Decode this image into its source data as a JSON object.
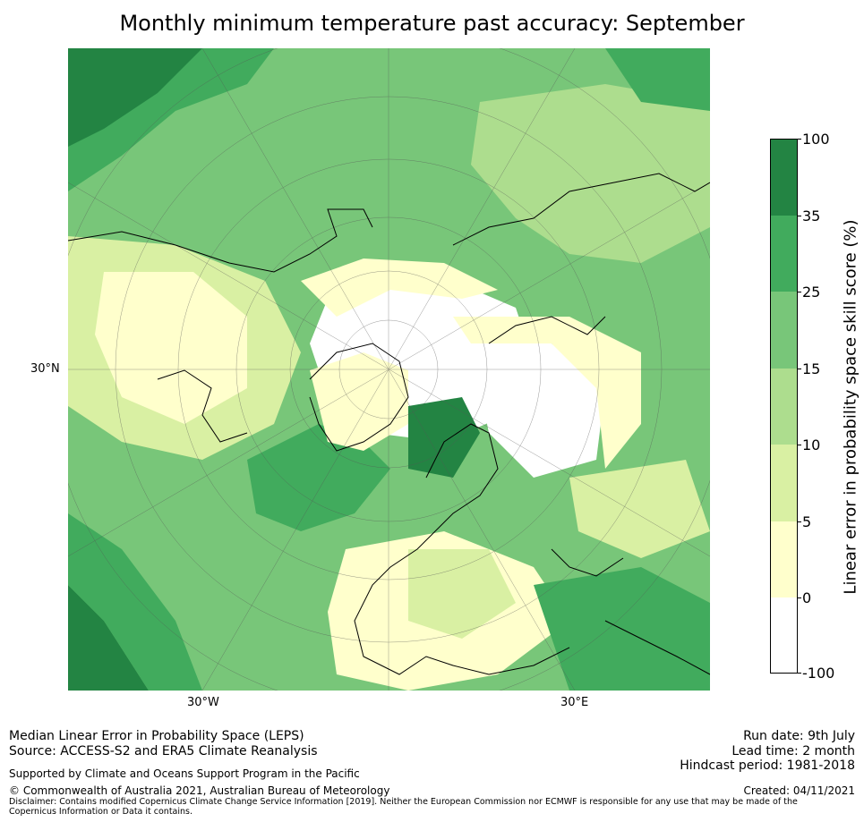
{
  "title": "Monthly minimum temperature past accuracy: September",
  "map": {
    "lat_labels": [
      "30°N"
    ],
    "lon_labels": [
      "30°W",
      "30°E"
    ],
    "colors": {
      "ocean_dark": "#238443",
      "mid_green": "#41ab5d",
      "green": "#78c679",
      "light_green": "#addd8e",
      "pale_green": "#d9f0a3",
      "pale_yellow": "#ffffcc",
      "white": "#ffffff"
    }
  },
  "colorbar": {
    "label": "Linear error in probability space skill score (%)",
    "ticks": [
      "100",
      "35",
      "25",
      "15",
      "10",
      "5",
      "0",
      "-100"
    ],
    "segments": [
      {
        "color": "#238443"
      },
      {
        "color": "#41ab5d"
      },
      {
        "color": "#78c679"
      },
      {
        "color": "#addd8e"
      },
      {
        "color": "#d9f0a3"
      },
      {
        "color": "#ffffcc"
      },
      {
        "color": "#ffffff"
      }
    ]
  },
  "footer": {
    "method": "Median Linear Error in Probability Space (LEPS)",
    "source": "Source: ACCESS-S2 and ERA5 Climate Reanalysis",
    "support": "Supported by Climate and Oceans Support Program in the Pacific",
    "copyright": "© Commonwealth of Australia 2021, Australian Bureau of Meteorology",
    "disclaimer": "Disclaimer: Contains modified Copernicus Climate Change Service Information [2019]. Neither the European Commission nor ECMWF is responsible for any use that may be made of the Copernicus Information or Data it contains.",
    "run_date": "Run date: 9th July",
    "lead_time": "Lead time: 2 month",
    "hindcast": "Hindcast period: 1981-2018",
    "created": "Created: 04/11/2021"
  }
}
